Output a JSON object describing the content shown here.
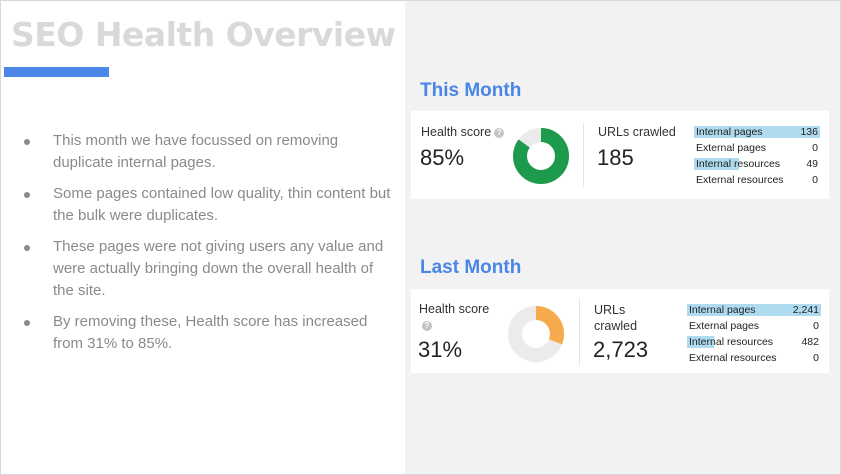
{
  "slide": {
    "title": "SEO Health Overview",
    "bullets": [
      "This month we have focussed on removing duplicate internal pages.",
      "Some  pages contained low quality, thin content but the bulk were duplicates.",
      "These pages were not giving users any value and were actually bringing down the overall health of the site.",
      "By removing these, Health score has  increased from 31% to 85%."
    ]
  },
  "this_month": {
    "heading": "This Month",
    "health_label": "Health score",
    "help_icon": "?",
    "health_value": "85%",
    "health_fraction": 0.85,
    "donut_color": "#1e9a4d",
    "urls_label": "URLs crawled",
    "urls_value": "185",
    "breakdown": [
      {
        "name": "Internal pages",
        "value": "136",
        "fraction": 1.0
      },
      {
        "name": "External pages",
        "value": "0",
        "fraction": 0
      },
      {
        "name": "Internal resources",
        "value": "49",
        "fraction": 0.36
      },
      {
        "name": "External resources",
        "value": "0",
        "fraction": 0
      }
    ]
  },
  "last_month": {
    "heading": "Last Month",
    "health_label": "Health score",
    "help_icon": "?",
    "health_value": "31%",
    "health_fraction": 0.31,
    "donut_color": "#f6a94d",
    "urls_label_line1": "URLs",
    "urls_label_line2": "crawled",
    "urls_value": "2,723",
    "breakdown": [
      {
        "name": "Internal pages",
        "value": "2,241",
        "fraction": 1.0
      },
      {
        "name": "External pages",
        "value": "0",
        "fraction": 0
      },
      {
        "name": "Internal resources",
        "value": "482",
        "fraction": 0.2
      },
      {
        "name": "External resources",
        "value": "0",
        "fraction": 0
      }
    ]
  },
  "colors": {
    "accent": "#4a86e8",
    "bar": "#aedbf0",
    "donut_track": "#ebebeb"
  }
}
